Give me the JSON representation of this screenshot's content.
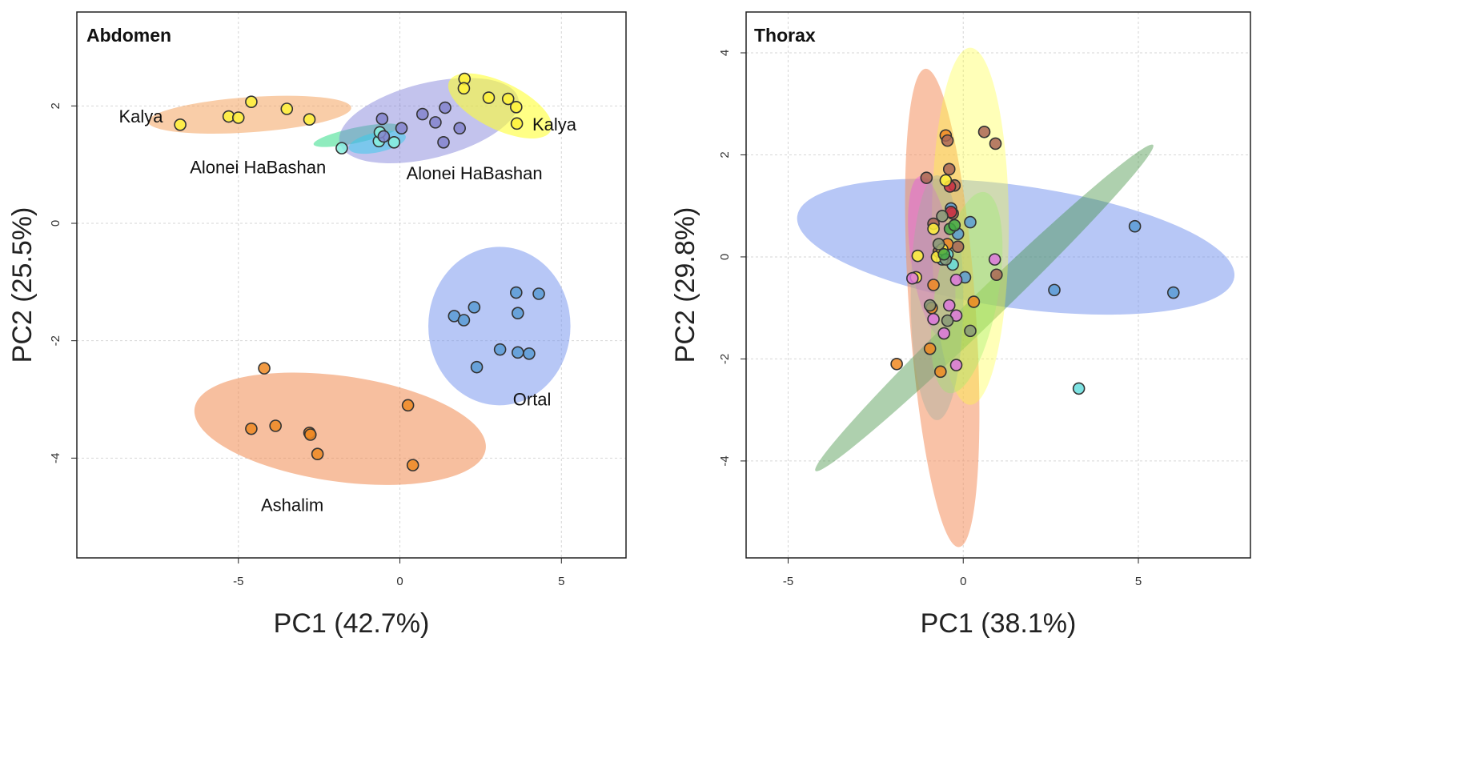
{
  "figure": {
    "colors": {
      "kalya_orange": "#f4a460",
      "kalya_yellow": "#ffff33",
      "alonei_purple": "#7b7bd6",
      "alonei_green": "#33dd88",
      "ortal_blue": "#7090ee",
      "ashalim_orange": "#f08a50",
      "pink": "#ee44ee",
      "green": "#3f8f3f",
      "olive": "#99aa55",
      "light_green": "#99ee66"
    }
  },
  "chart_data": [
    {
      "type": "scatter",
      "title": "Abdomen",
      "xlabel": "PC1 (42.7%)",
      "ylabel": "PC2 (25.5%)",
      "xlim": [
        -10,
        7
      ],
      "ylim": [
        -5.7,
        3.6
      ],
      "xticks": [
        -5,
        0,
        5
      ],
      "yticks": [
        -4,
        -2,
        0,
        2
      ],
      "xtick_labels": [
        "-5",
        "0",
        "5"
      ],
      "ytick_labels": [
        "-4",
        "-2",
        "0",
        "2"
      ],
      "grid": true,
      "legend": "none",
      "ellipses": [
        {
          "name": "Kalya west",
          "cx": -4.65,
          "cy": 1.85,
          "rx": 3.15,
          "ry": 0.3,
          "angle": 4,
          "color": "#f4a460",
          "opacity": 0.55
        },
        {
          "name": "Alonei HaBashan west",
          "cx": -1.35,
          "cy": 1.5,
          "rx": 1.35,
          "ry": 0.13,
          "angle": 12,
          "color": "#33dd88",
          "opacity": 0.55
        },
        {
          "name": "Alonei HaBashan east",
          "cx": 0.9,
          "cy": 1.75,
          "rx": 2.85,
          "ry": 0.64,
          "angle": 14,
          "color": "#7b7bd6",
          "opacity": 0.45
        },
        {
          "name": "Kalya east",
          "cx": 3.1,
          "cy": 2.0,
          "rx": 1.75,
          "ry": 0.4,
          "angle": -26,
          "color": "#ffff33",
          "opacity": 0.6
        },
        {
          "name": "Alonei HaBashan cyan",
          "cx": -0.7,
          "cy": 1.38,
          "rx": 0.9,
          "ry": 0.17,
          "angle": 12,
          "color": "#33ccee",
          "opacity": 0.5
        },
        {
          "name": "Ortal",
          "cx": 3.08,
          "cy": -1.75,
          "rx": 2.2,
          "ry": 1.35,
          "angle": 0,
          "color": "#7090ee",
          "opacity": 0.5
        },
        {
          "name": "Ashalim",
          "cx": -1.85,
          "cy": -3.5,
          "rx": 4.55,
          "ry": 0.9,
          "angle": -8,
          "color": "#f08a50",
          "opacity": 0.55
        }
      ],
      "series": [
        {
          "name": "Kalya (west)",
          "color": "#fff23a",
          "points": [
            [
              -6.8,
              1.68
            ],
            [
              -5.3,
              1.82
            ],
            [
              -5.0,
              1.8
            ],
            [
              -4.6,
              2.07
            ],
            [
              -3.5,
              1.95
            ],
            [
              -2.8,
              1.77
            ]
          ]
        },
        {
          "name": "Alonei HaBashan (west)",
          "color": "#88eedd",
          "points": [
            [
              -1.8,
              1.28
            ],
            [
              -0.65,
              1.4
            ],
            [
              -0.62,
              1.55
            ],
            [
              -0.18,
              1.38
            ]
          ]
        },
        {
          "name": "Alonei HaBashan (east)",
          "color": "#8484cc",
          "points": [
            [
              -0.55,
              1.78
            ],
            [
              0.05,
              1.62
            ],
            [
              0.7,
              1.86
            ],
            [
              1.1,
              1.72
            ],
            [
              1.4,
              1.97
            ],
            [
              1.85,
              1.62
            ],
            [
              1.35,
              1.38
            ],
            [
              -0.5,
              1.48
            ]
          ]
        },
        {
          "name": "Kalya (east)",
          "color": "#fff23a",
          "points": [
            [
              2.0,
              2.46
            ],
            [
              1.98,
              2.3
            ],
            [
              2.75,
              2.14
            ],
            [
              3.35,
              2.12
            ],
            [
              3.6,
              1.98
            ],
            [
              3.62,
              1.7
            ]
          ]
        },
        {
          "name": "Ortal",
          "color": "#5b9bd5",
          "points": [
            [
              1.68,
              -1.58
            ],
            [
              1.98,
              -1.65
            ],
            [
              2.3,
              -1.43
            ],
            [
              3.6,
              -1.18
            ],
            [
              4.3,
              -1.2
            ],
            [
              3.65,
              -1.53
            ],
            [
              3.1,
              -2.15
            ],
            [
              3.65,
              -2.2
            ],
            [
              4.0,
              -2.22
            ],
            [
              2.38,
              -2.45
            ]
          ]
        },
        {
          "name": "Ashalim",
          "color": "#ee8822",
          "points": [
            [
              -4.2,
              -2.47
            ],
            [
              -4.6,
              -3.5
            ],
            [
              -3.85,
              -3.45
            ],
            [
              -2.8,
              -3.57
            ],
            [
              -2.77,
              -3.6
            ],
            [
              -2.55,
              -3.93
            ],
            [
              0.25,
              -3.1
            ],
            [
              0.4,
              -4.12
            ]
          ]
        }
      ],
      "annotations": [
        {
          "text": "Kalya",
          "x": -8.7,
          "y": 1.72
        },
        {
          "text": "Alonei HaBashan",
          "x": -6.5,
          "y": 0.85
        },
        {
          "text": "Alonei HaBashan",
          "x": 0.2,
          "y": 0.75
        },
        {
          "text": "Kalya",
          "x": 4.1,
          "y": 1.58
        },
        {
          "text": "Ortal",
          "x": 3.5,
          "y": -3.1
        },
        {
          "text": "Ashalim",
          "x": -4.3,
          "y": -4.9
        }
      ]
    },
    {
      "type": "scatter",
      "title": "Thorax",
      "xlabel": "PC1 (38.1%)",
      "ylabel": "PC2 (29.8%)",
      "xlim": [
        -6.2,
        8.2
      ],
      "ylim": [
        -5.9,
        4.8
      ],
      "xticks": [
        -5,
        0,
        5
      ],
      "yticks": [
        -4,
        -2,
        0,
        2,
        4
      ],
      "xtick_labels": [
        "-5",
        "0",
        "5"
      ],
      "ytick_labels": [
        "-4",
        "-2",
        "0",
        "2",
        "4"
      ],
      "grid": true,
      "legend": "none",
      "ellipses": [
        {
          "name": "blue",
          "cx": 1.5,
          "cy": 0.2,
          "rx": 6.3,
          "ry": 1.2,
          "angle": -8,
          "color": "#7090ee",
          "opacity": 0.5
        },
        {
          "name": "orange",
          "cx": -0.6,
          "cy": -1.0,
          "rx": 0.95,
          "ry": 4.7,
          "angle": 4,
          "color": "#f4905e",
          "opacity": 0.55
        },
        {
          "name": "green",
          "cx": 0.6,
          "cy": -1.0,
          "rx": 6.7,
          "ry": 0.3,
          "angle": 44,
          "color": "#3f8f3f",
          "opacity": 0.42
        },
        {
          "name": "light yellow",
          "cx": 0.2,
          "cy": 0.6,
          "rx": 1.1,
          "ry": 3.5,
          "angle": 0,
          "color": "#ffff33",
          "opacity": 0.35
        },
        {
          "name": "pink",
          "cx": -0.9,
          "cy": 0.0,
          "rx": 0.6,
          "ry": 1.6,
          "angle": 8,
          "color": "#ee44ee",
          "opacity": 0.35
        },
        {
          "name": "olive",
          "cx": -0.75,
          "cy": -0.8,
          "rx": 0.75,
          "ry": 2.4,
          "angle": 0,
          "color": "#a0b0a0",
          "opacity": 0.4
        },
        {
          "name": "light green",
          "cx": 0.1,
          "cy": -0.7,
          "rx": 0.9,
          "ry": 2.0,
          "angle": -10,
          "color": "#99ee66",
          "opacity": 0.35
        }
      ],
      "series": [
        {
          "name": "blue group",
          "color": "#5b9bd5",
          "points": [
            [
              4.9,
              0.6
            ],
            [
              6.0,
              -0.7
            ],
            [
              2.6,
              -0.65
            ],
            [
              -0.35,
              0.95
            ],
            [
              0.2,
              0.68
            ],
            [
              0.05,
              -0.4
            ],
            [
              -0.15,
              0.45
            ]
          ]
        },
        {
          "name": "cyan group",
          "color": "#66dddd",
          "points": [
            [
              3.3,
              -2.58
            ],
            [
              -0.45,
              0.05
            ],
            [
              -0.6,
              -0.05
            ],
            [
              -0.3,
              -0.15
            ]
          ]
        },
        {
          "name": "orange group",
          "color": "#ee8822",
          "points": [
            [
              -1.9,
              -2.1
            ],
            [
              -0.95,
              -1.8
            ],
            [
              -0.65,
              -2.25
            ],
            [
              -0.9,
              -1.0
            ],
            [
              -0.85,
              -0.55
            ],
            [
              0.3,
              -0.88
            ],
            [
              -0.5,
              2.38
            ],
            [
              -0.45,
              0.25
            ]
          ]
        },
        {
          "name": "brown group",
          "color": "#aa6655",
          "points": [
            [
              0.6,
              2.45
            ],
            [
              0.92,
              2.22
            ],
            [
              -0.45,
              2.28
            ],
            [
              -0.4,
              1.72
            ],
            [
              -1.05,
              1.55
            ],
            [
              -0.25,
              1.4
            ],
            [
              -0.3,
              0.85
            ],
            [
              -0.15,
              0.2
            ],
            [
              -0.85,
              0.65
            ],
            [
              0.95,
              -0.35
            ],
            [
              -0.7,
              0.1
            ]
          ]
        },
        {
          "name": "red group",
          "color": "#cc3344",
          "points": [
            [
              -0.38,
              1.38
            ],
            [
              -0.35,
              0.88
            ]
          ]
        },
        {
          "name": "yellow group",
          "color": "#fff23a",
          "points": [
            [
              -0.5,
              1.5
            ],
            [
              -0.85,
              0.55
            ],
            [
              -1.3,
              0.02
            ],
            [
              -1.35,
              -0.4
            ],
            [
              -0.75,
              0.0
            ],
            [
              -0.6,
              0.15
            ]
          ]
        },
        {
          "name": "pink group",
          "color": "#dd77dd",
          "points": [
            [
              -1.45,
              -0.42
            ],
            [
              -0.85,
              -1.22
            ],
            [
              -0.55,
              -1.5
            ],
            [
              -0.4,
              -0.95
            ],
            [
              -0.2,
              -1.15
            ],
            [
              -0.2,
              -0.45
            ],
            [
              -0.2,
              -2.12
            ],
            [
              0.9,
              -0.05
            ]
          ]
        },
        {
          "name": "gray-green group",
          "color": "#889977",
          "points": [
            [
              0.2,
              -1.45
            ],
            [
              -0.45,
              -1.25
            ],
            [
              -0.6,
              0.8
            ],
            [
              -0.7,
              0.25
            ],
            [
              -0.95,
              -0.95
            ],
            [
              -0.5,
              -0.05
            ]
          ]
        },
        {
          "name": "green group",
          "color": "#44aa44",
          "points": [
            [
              -0.55,
              0.05
            ],
            [
              -0.38,
              0.55
            ],
            [
              -0.25,
              0.62
            ]
          ]
        }
      ],
      "annotations": []
    }
  ]
}
